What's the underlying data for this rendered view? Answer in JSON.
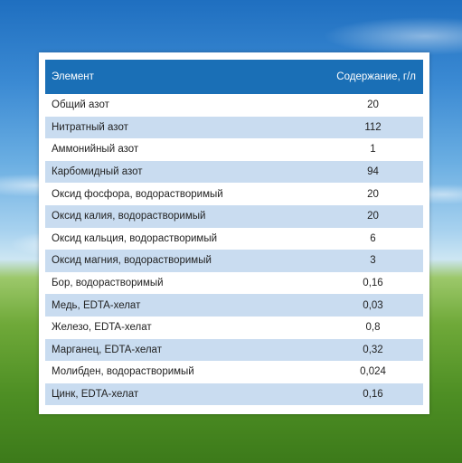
{
  "table": {
    "header": {
      "element": "Элемент",
      "content": "Содержание, г/л"
    },
    "rows": [
      {
        "element": "Общий азот",
        "value": "20"
      },
      {
        "element": "Нитратный азот",
        "value": "112"
      },
      {
        "element": "Аммонийный азот",
        "value": "1"
      },
      {
        "element": "Карбомидный азот",
        "value": "94"
      },
      {
        "element": "Оксид фосфора, водорастворимый",
        "value": "20"
      },
      {
        "element": "Оксид калия, водорастворимый",
        "value": "20"
      },
      {
        "element": "Оксид кальция, водорастворимый",
        "value": "6"
      },
      {
        "element": "Оксид магния,  водорастворимый",
        "value": "3"
      },
      {
        "element": "Бор, водорастворимый",
        "value": "0,16"
      },
      {
        "element": "Медь, EDTA-хелат",
        "value": "0,03"
      },
      {
        "element": "Железо, EDTA-хелат",
        "value": "0,8"
      },
      {
        "element": "Марганец, EDTA-хелат",
        "value": "0,32"
      },
      {
        "element": "Молибден, водорастворимый",
        "value": "0,024"
      },
      {
        "element": "Цинк, EDTA-хелат",
        "value": "0,16"
      }
    ]
  },
  "colors": {
    "header_bg": "#1a6fb6",
    "stripe_bg": "#c9dcf0"
  }
}
